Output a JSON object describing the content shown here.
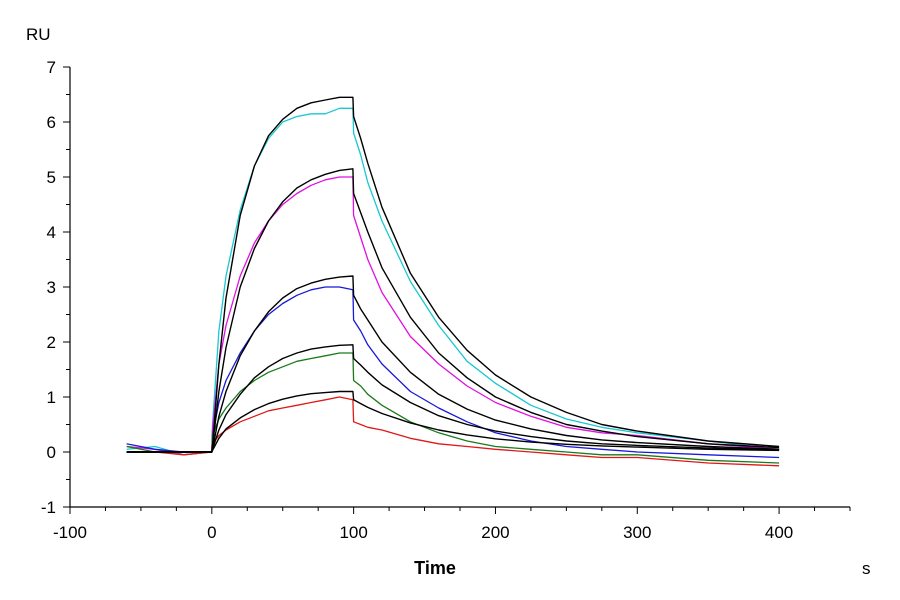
{
  "chart_data": {
    "type": "line",
    "xlabel": "Time",
    "x_unit": "s",
    "y_unit": "RU",
    "xlim": [
      -100,
      450
    ],
    "ylim": [
      -1,
      7
    ],
    "x_ticks": [
      -100,
      0,
      100,
      200,
      300,
      400
    ],
    "y_ticks": [
      -1,
      0,
      1,
      2,
      3,
      4,
      5,
      6,
      7
    ],
    "grid": false,
    "colors": {
      "cyan": "#19c8d2",
      "magenta": "#e010e0",
      "blue": "#1818d8",
      "green": "#1a7a1a",
      "red": "#e01818",
      "fit": "#000000"
    },
    "series": [
      {
        "color": "#19c8d2",
        "x": [
          -60,
          -40,
          -20,
          0,
          0.5,
          5,
          10,
          20,
          30,
          40,
          50,
          60,
          70,
          80,
          90,
          99.5,
          100,
          105,
          110,
          120,
          140,
          160,
          180,
          200,
          225,
          250,
          275,
          300,
          350,
          400
        ],
        "y": [
          0.05,
          0.1,
          -0.05,
          0,
          0.5,
          2.2,
          3.2,
          4.4,
          5.2,
          5.7,
          6.0,
          6.1,
          6.15,
          6.15,
          6.25,
          6.25,
          5.8,
          5.4,
          4.9,
          4.2,
          3.1,
          2.3,
          1.65,
          1.25,
          0.85,
          0.6,
          0.45,
          0.35,
          0.2,
          0.05
        ]
      },
      {
        "color": "#e010e0",
        "x": [
          -60,
          -40,
          -20,
          0,
          0.5,
          5,
          10,
          20,
          30,
          40,
          50,
          60,
          70,
          80,
          90,
          99.5,
          100,
          105,
          110,
          120,
          140,
          160,
          180,
          200,
          225,
          250,
          275,
          300,
          350,
          400
        ],
        "y": [
          0.1,
          0.05,
          -0.05,
          0,
          0.4,
          1.6,
          2.3,
          3.2,
          3.8,
          4.2,
          4.5,
          4.7,
          4.85,
          4.95,
          5.0,
          5.0,
          4.3,
          3.9,
          3.5,
          2.9,
          2.1,
          1.6,
          1.2,
          0.9,
          0.65,
          0.45,
          0.35,
          0.3,
          0.15,
          0.05
        ]
      },
      {
        "color": "#1818d8",
        "x": [
          -60,
          -40,
          -20,
          0,
          0.5,
          5,
          10,
          20,
          30,
          40,
          50,
          60,
          70,
          80,
          90,
          99.5,
          100,
          105,
          110,
          120,
          140,
          160,
          180,
          200,
          225,
          250,
          275,
          300,
          350,
          400
        ],
        "y": [
          0.15,
          0.05,
          0.0,
          0,
          0.3,
          0.9,
          1.3,
          1.8,
          2.2,
          2.5,
          2.7,
          2.85,
          2.95,
          3.0,
          3.0,
          2.95,
          2.4,
          2.2,
          1.95,
          1.6,
          1.1,
          0.8,
          0.55,
          0.35,
          0.2,
          0.1,
          0.05,
          0.0,
          -0.05,
          -0.1
        ]
      },
      {
        "color": "#1a7a1a",
        "x": [
          -60,
          -40,
          -20,
          0,
          0.5,
          5,
          10,
          20,
          30,
          40,
          50,
          60,
          70,
          80,
          90,
          99.5,
          100,
          105,
          110,
          120,
          140,
          160,
          180,
          200,
          225,
          250,
          275,
          300,
          350,
          400
        ],
        "y": [
          0.1,
          0.0,
          0.0,
          0,
          0.3,
          0.6,
          0.8,
          1.1,
          1.3,
          1.45,
          1.55,
          1.65,
          1.7,
          1.75,
          1.8,
          1.8,
          1.3,
          1.2,
          1.05,
          0.85,
          0.55,
          0.35,
          0.2,
          0.1,
          0.05,
          0.0,
          -0.05,
          -0.05,
          -0.15,
          -0.2
        ]
      },
      {
        "color": "#e01818",
        "x": [
          -60,
          -40,
          -20,
          0,
          0.5,
          5,
          10,
          20,
          30,
          40,
          50,
          60,
          70,
          80,
          90,
          99.5,
          100,
          105,
          110,
          120,
          140,
          160,
          180,
          200,
          225,
          250,
          275,
          300,
          350,
          400
        ],
        "y": [
          0.0,
          0.0,
          -0.05,
          0,
          0.15,
          0.3,
          0.4,
          0.55,
          0.65,
          0.75,
          0.8,
          0.85,
          0.9,
          0.95,
          1.0,
          0.95,
          0.55,
          0.5,
          0.45,
          0.4,
          0.25,
          0.15,
          0.1,
          0.05,
          0.0,
          -0.05,
          -0.1,
          -0.1,
          -0.2,
          -0.25
        ]
      },
      {
        "color": "#000000",
        "x": [
          -60,
          0,
          0.5,
          5,
          10,
          20,
          30,
          40,
          50,
          60,
          70,
          80,
          90,
          99.5,
          100,
          105,
          110,
          120,
          140,
          160,
          180,
          200,
          225,
          250,
          275,
          300,
          350,
          400
        ],
        "y": [
          0,
          0,
          0.1,
          1.6,
          2.8,
          4.3,
          5.2,
          5.75,
          6.05,
          6.25,
          6.35,
          6.4,
          6.45,
          6.45,
          6.1,
          5.7,
          5.25,
          4.45,
          3.25,
          2.45,
          1.85,
          1.4,
          1.0,
          0.72,
          0.5,
          0.38,
          0.2,
          0.1
        ]
      },
      {
        "color": "#000000",
        "x": [
          -60,
          0,
          0.5,
          5,
          10,
          20,
          30,
          40,
          50,
          60,
          70,
          80,
          90,
          99.5,
          100,
          105,
          110,
          120,
          140,
          160,
          180,
          200,
          225,
          250,
          275,
          300,
          350,
          400
        ],
        "y": [
          0,
          0,
          0.1,
          1.1,
          1.9,
          3.0,
          3.7,
          4.2,
          4.55,
          4.8,
          4.95,
          5.05,
          5.12,
          5.15,
          4.7,
          4.35,
          4.0,
          3.35,
          2.45,
          1.8,
          1.35,
          1.0,
          0.72,
          0.5,
          0.38,
          0.28,
          0.15,
          0.08
        ]
      },
      {
        "color": "#000000",
        "x": [
          -60,
          0,
          0.5,
          5,
          10,
          20,
          30,
          40,
          50,
          60,
          70,
          80,
          90,
          99.5,
          100,
          105,
          110,
          120,
          140,
          160,
          180,
          200,
          225,
          250,
          275,
          300,
          350,
          400
        ],
        "y": [
          0,
          0,
          0.05,
          0.65,
          1.1,
          1.75,
          2.2,
          2.55,
          2.8,
          2.97,
          3.07,
          3.14,
          3.18,
          3.2,
          2.85,
          2.6,
          2.4,
          2.0,
          1.45,
          1.05,
          0.78,
          0.58,
          0.42,
          0.3,
          0.22,
          0.17,
          0.1,
          0.05
        ]
      },
      {
        "color": "#000000",
        "x": [
          -60,
          0,
          0.5,
          5,
          10,
          20,
          30,
          40,
          50,
          60,
          70,
          80,
          90,
          99.5,
          100,
          105,
          110,
          120,
          140,
          160,
          180,
          200,
          225,
          250,
          275,
          300,
          350,
          400
        ],
        "y": [
          0,
          0,
          0.05,
          0.4,
          0.68,
          1.05,
          1.35,
          1.55,
          1.7,
          1.8,
          1.87,
          1.91,
          1.94,
          1.95,
          1.7,
          1.58,
          1.45,
          1.22,
          0.9,
          0.66,
          0.5,
          0.38,
          0.28,
          0.2,
          0.15,
          0.12,
          0.07,
          0.04
        ]
      },
      {
        "color": "#000000",
        "x": [
          -60,
          0,
          0.5,
          5,
          10,
          20,
          30,
          40,
          50,
          60,
          70,
          80,
          90,
          99.5,
          100,
          105,
          110,
          120,
          140,
          160,
          180,
          200,
          225,
          250,
          275,
          300,
          350,
          400
        ],
        "y": [
          0,
          0,
          0.03,
          0.25,
          0.42,
          0.62,
          0.77,
          0.88,
          0.96,
          1.02,
          1.06,
          1.08,
          1.1,
          1.1,
          0.95,
          0.88,
          0.81,
          0.7,
          0.53,
          0.4,
          0.31,
          0.24,
          0.18,
          0.14,
          0.11,
          0.09,
          0.05,
          0.03
        ]
      }
    ]
  }
}
